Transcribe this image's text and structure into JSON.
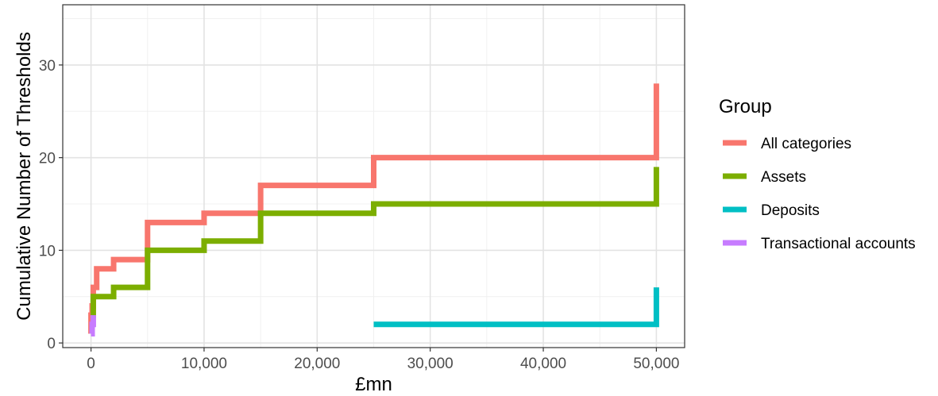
{
  "chart_data": {
    "type": "line",
    "title": "",
    "xlabel": "£mn",
    "ylabel": "Cumulative Number of Thresholds",
    "xlim": [
      -2500,
      52500
    ],
    "ylim": [
      -0.5,
      36.5
    ],
    "x_ticks": [
      0,
      10000,
      20000,
      30000,
      40000,
      50000
    ],
    "x_tick_labels": [
      "0",
      "10,000",
      "20,000",
      "30,000",
      "40,000",
      "50,000"
    ],
    "y_ticks": [
      0,
      10,
      20,
      30
    ],
    "y_tick_labels": [
      "0",
      "10",
      "20",
      "30"
    ],
    "grid": true,
    "legend": {
      "title": "Group",
      "position": "right"
    },
    "series": [
      {
        "name": "All categories",
        "color": "#F8766D",
        "step": true,
        "x": [
          0,
          0,
          100,
          200,
          500,
          2000,
          5000,
          10000,
          15000,
          25000,
          50000,
          50000
        ],
        "y": [
          1,
          3,
          4,
          6,
          8,
          9,
          13,
          14,
          17,
          20,
          20,
          28
        ]
      },
      {
        "name": "Assets",
        "color": "#7CAE00",
        "step": true,
        "x": [
          0,
          200,
          2000,
          5000,
          10000,
          15000,
          25000,
          50000,
          50000
        ],
        "y": [
          3,
          5,
          6,
          10,
          11,
          14,
          15,
          15,
          19
        ]
      },
      {
        "name": "Deposits",
        "color": "#00BFC4",
        "step": true,
        "x": [
          25000,
          50000,
          50000
        ],
        "y": [
          2,
          2,
          6
        ]
      },
      {
        "name": "Transactional accounts",
        "color": "#C77CFF",
        "step": true,
        "x": [
          0,
          100,
          200
        ],
        "y": [
          1,
          2,
          3
        ]
      }
    ]
  }
}
